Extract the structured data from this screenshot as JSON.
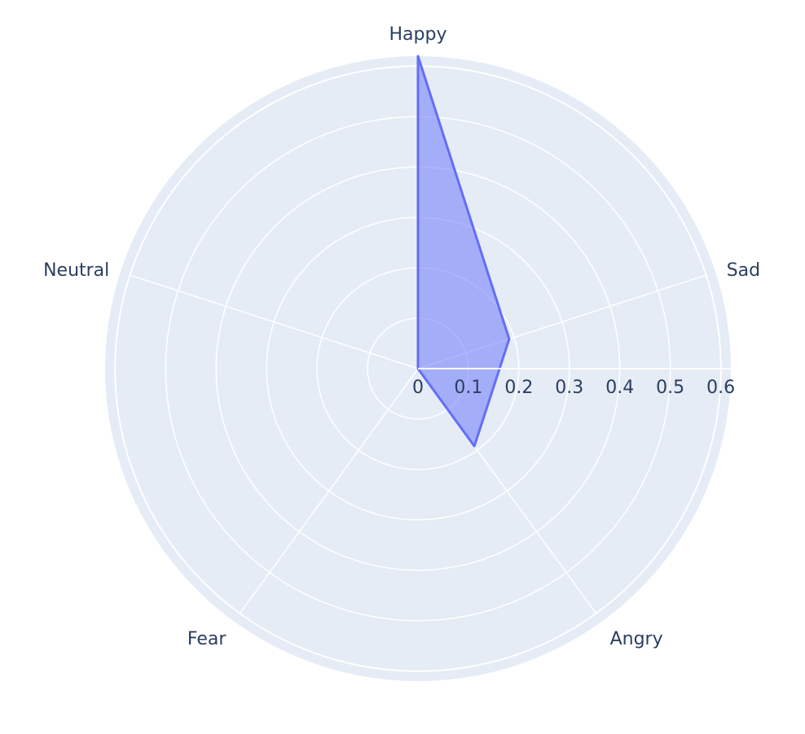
{
  "chart_data": {
    "type": "radar",
    "title": "",
    "categories": [
      "Happy",
      "Sad",
      "Angry",
      "Fear",
      "Neutral"
    ],
    "series": [
      {
        "values": [
          0.62,
          0.19,
          0.19,
          0,
          0
        ],
        "color": "#636efa",
        "fill": "rgba(99,110,250,0.5)"
      }
    ],
    "radial_range": [
      0,
      0.62
    ],
    "radial_ticks": [
      "0",
      "0.1",
      "0.2",
      "0.3",
      "0.4",
      "0.5",
      "0.6"
    ],
    "colors": {
      "plot_background": "#e5ecf6",
      "grid": "#ffffff",
      "text": "#2a3f5f"
    }
  }
}
